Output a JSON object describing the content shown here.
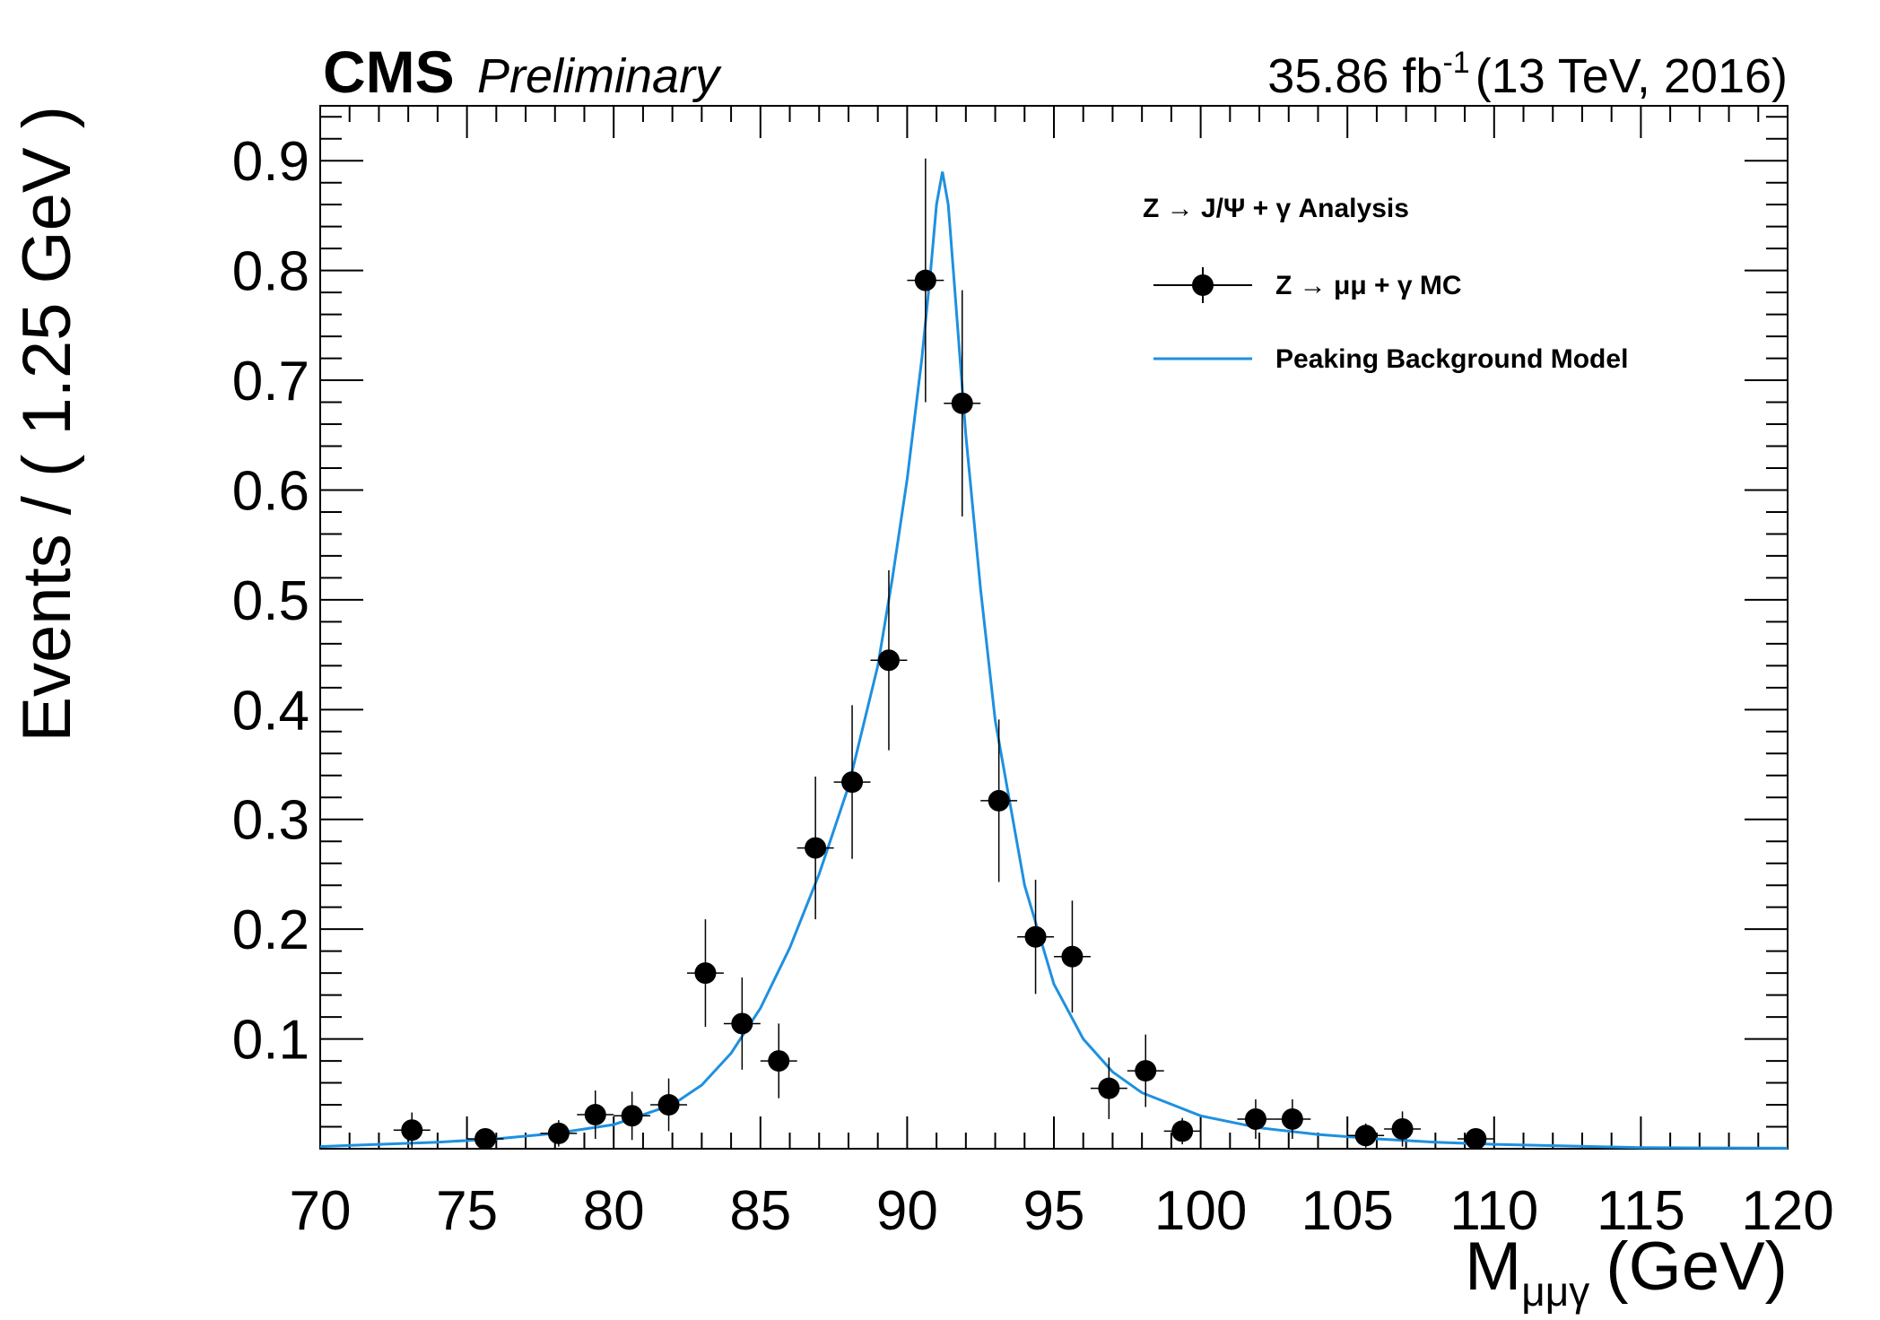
{
  "header": {
    "experiment": "CMS",
    "status": "Preliminary",
    "lumi_value": "35.86 fb",
    "lumi_exponent": "-1",
    "lumi_conditions": "(13 TeV, 2016)"
  },
  "legend": {
    "header": "Z → J/Ψ + γ Analysis",
    "data_label": "Z → μμ + γ MC",
    "model_label": "Peaking Background Model"
  },
  "chart_data": {
    "type": "scatter",
    "xlabel_main": "M",
    "xlabel_sub": "μμγ",
    "xlabel_unit": "(GeV)",
    "ylabel": "Events / ( 1.25 GeV )",
    "xlim": [
      70,
      120
    ],
    "ylim": [
      0,
      0.95
    ],
    "x_ticks": [
      70,
      75,
      80,
      85,
      90,
      95,
      100,
      105,
      110,
      115,
      120
    ],
    "y_ticks": [
      0.1,
      0.2,
      0.3,
      0.4,
      0.5,
      0.6,
      0.7,
      0.8,
      0.9
    ],
    "x_bin_half_width": 0.625,
    "series": [
      {
        "name": "Z → μμ + γ MC",
        "kind": "points_with_errors",
        "color": "#000000",
        "points": [
          {
            "x": 73.125,
            "y": 0.017,
            "err": 0.016
          },
          {
            "x": 75.625,
            "y": 0.009,
            "err": 0.009
          },
          {
            "x": 78.125,
            "y": 0.014,
            "err": 0.012
          },
          {
            "x": 79.375,
            "y": 0.031,
            "err": 0.022
          },
          {
            "x": 80.625,
            "y": 0.03,
            "err": 0.022
          },
          {
            "x": 81.875,
            "y": 0.04,
            "err": 0.024
          },
          {
            "x": 83.125,
            "y": 0.16,
            "err": 0.049
          },
          {
            "x": 84.375,
            "y": 0.114,
            "err": 0.042
          },
          {
            "x": 85.625,
            "y": 0.08,
            "err": 0.034
          },
          {
            "x": 86.875,
            "y": 0.274,
            "err": 0.065
          },
          {
            "x": 88.125,
            "y": 0.334,
            "err": 0.07
          },
          {
            "x": 89.375,
            "y": 0.445,
            "err": 0.082
          },
          {
            "x": 90.625,
            "y": 0.791,
            "err": 0.111
          },
          {
            "x": 91.875,
            "y": 0.679,
            "err": 0.103
          },
          {
            "x": 93.125,
            "y": 0.317,
            "err": 0.074
          },
          {
            "x": 94.375,
            "y": 0.193,
            "err": 0.052
          },
          {
            "x": 95.625,
            "y": 0.175,
            "err": 0.051
          },
          {
            "x": 96.875,
            "y": 0.055,
            "err": 0.028
          },
          {
            "x": 98.125,
            "y": 0.071,
            "err": 0.033
          },
          {
            "x": 99.375,
            "y": 0.016,
            "err": 0.012
          },
          {
            "x": 101.875,
            "y": 0.027,
            "err": 0.018
          },
          {
            "x": 103.125,
            "y": 0.027,
            "err": 0.018
          },
          {
            "x": 105.625,
            "y": 0.012,
            "err": 0.011
          },
          {
            "x": 106.875,
            "y": 0.018,
            "err": 0.016
          },
          {
            "x": 109.375,
            "y": 0.009,
            "err": 0.009
          }
        ]
      },
      {
        "name": "Peaking Background Model",
        "kind": "curve",
        "color": "#1e90e0",
        "x": [
          70,
          72,
          74,
          76,
          78,
          80,
          82,
          83,
          84,
          85,
          86,
          87,
          88,
          89,
          89.5,
          90,
          90.5,
          90.8,
          91.0,
          91.2,
          91.4,
          91.6,
          92.0,
          92.5,
          93,
          94,
          95,
          96,
          97,
          98,
          100,
          102,
          104,
          106,
          108,
          110,
          115,
          120
        ],
        "y": [
          0.002,
          0.004,
          0.006,
          0.009,
          0.014,
          0.022,
          0.04,
          0.058,
          0.087,
          0.128,
          0.183,
          0.25,
          0.33,
          0.44,
          0.52,
          0.61,
          0.72,
          0.8,
          0.86,
          0.89,
          0.86,
          0.79,
          0.65,
          0.51,
          0.39,
          0.24,
          0.15,
          0.1,
          0.07,
          0.051,
          0.03,
          0.019,
          0.013,
          0.009,
          0.006,
          0.004,
          0.001,
          0.0005
        ]
      }
    ]
  }
}
